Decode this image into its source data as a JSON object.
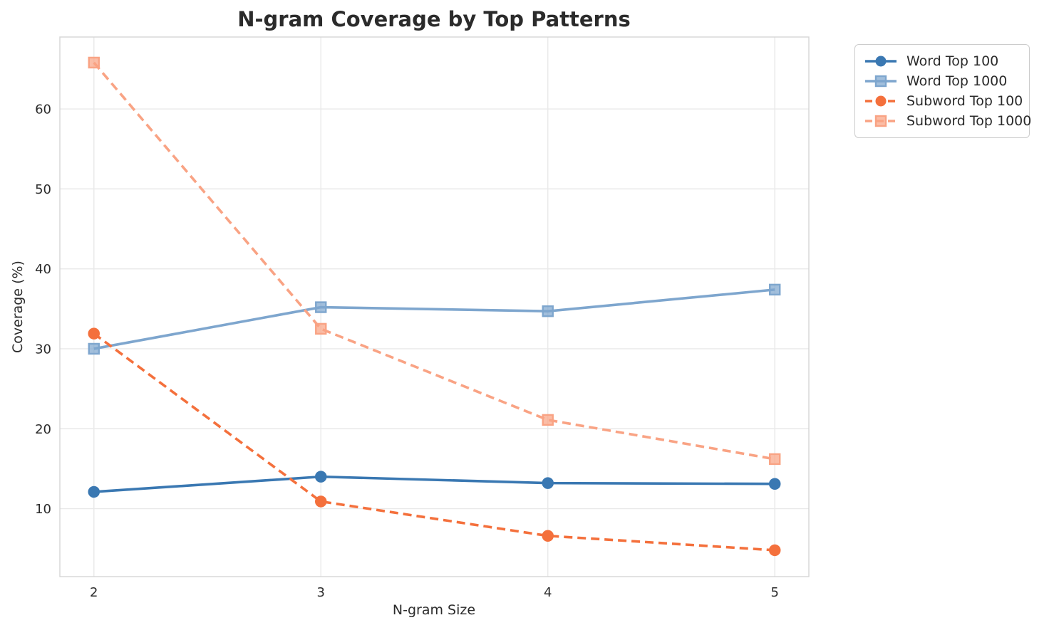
{
  "figure": {
    "background": "#ffffff"
  },
  "chart_data": {
    "type": "line",
    "title": "N-gram Coverage by Top Patterns",
    "xlabel": "N-gram Size",
    "ylabel": "Coverage (%)",
    "x": [
      2,
      3,
      4,
      5
    ],
    "xticks": [
      "2",
      "3",
      "4",
      "5"
    ],
    "yticks": [
      10,
      20,
      30,
      40,
      50,
      60
    ],
    "xlim": [
      1.85,
      5.15
    ],
    "ylim": [
      1.5,
      69
    ],
    "grid": true,
    "legend_position": "outside-upper-right",
    "series": [
      {
        "name": "Word Top 100",
        "values": [
          12.1,
          14.0,
          13.2,
          13.1
        ],
        "color": "#3a78b2",
        "linestyle": "solid",
        "marker": "circle"
      },
      {
        "name": "Word Top 1000",
        "values": [
          30.0,
          35.2,
          34.7,
          37.4
        ],
        "color": "#7ea6ce",
        "linestyle": "solid",
        "marker": "square"
      },
      {
        "name": "Subword Top 100",
        "values": [
          31.9,
          10.9,
          6.6,
          4.8
        ],
        "color": "#f4703c",
        "linestyle": "dashed",
        "marker": "circle"
      },
      {
        "name": "Subword Top 1000",
        "values": [
          65.8,
          32.5,
          21.1,
          16.2
        ],
        "color": "#f9a384",
        "linestyle": "dashed",
        "marker": "square"
      }
    ],
    "style": {
      "grid_color": "#e9e9e9",
      "spine_color": "#d5d5d5",
      "text_color": "#2b2b2b",
      "tick_font_size": 18
    }
  }
}
